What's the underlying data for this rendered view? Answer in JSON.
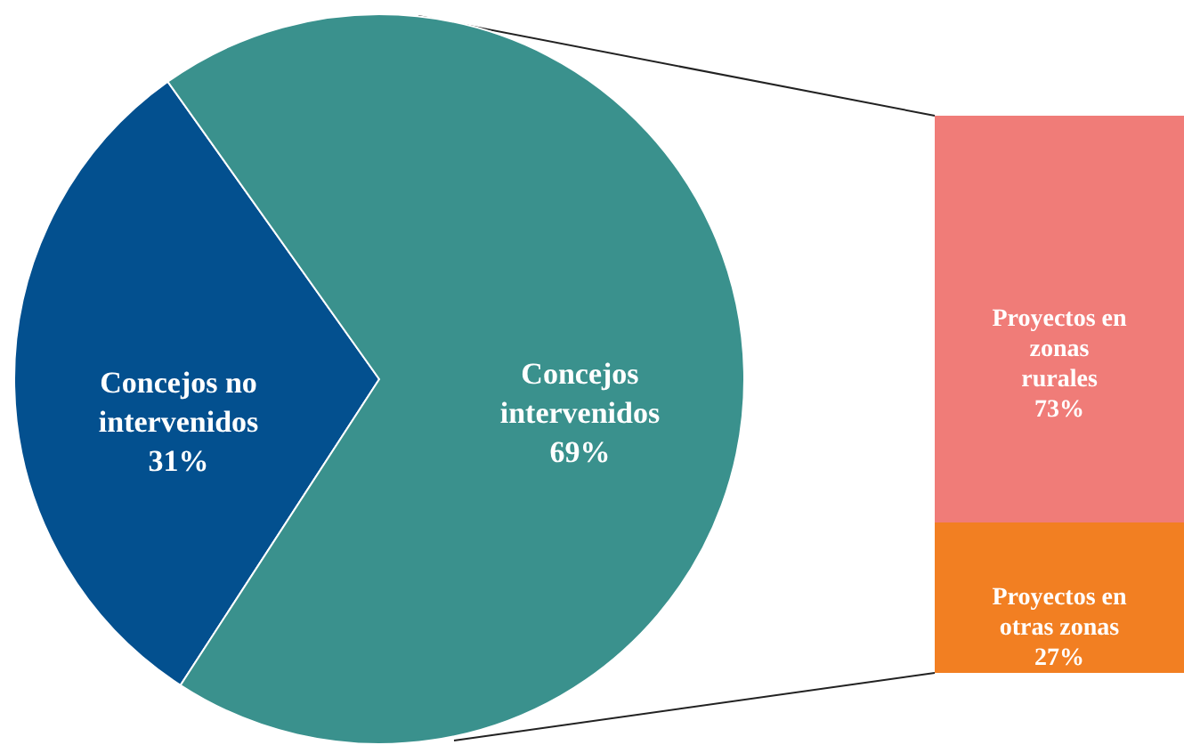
{
  "chart_data": [
    {
      "type": "pie",
      "categories": [
        "Concejos no intervenidos",
        "Concejos intervenidos"
      ],
      "values": [
        31,
        69
      ],
      "colors": [
        "#03508f",
        "#3a918d"
      ],
      "value_labels": [
        "31%",
        "69%"
      ]
    },
    {
      "type": "bar",
      "stacked": true,
      "categories": [
        null
      ],
      "series": [
        {
          "name": "Proyectos en otras zonas",
          "color": "#f27f22",
          "values": [
            27
          ],
          "value_labels": [
            "27%"
          ]
        },
        {
          "name": "Proyectos en zonas rurales",
          "color": "#f07c78",
          "values": [
            73
          ],
          "value_labels": [
            "73%"
          ]
        }
      ]
    }
  ]
}
